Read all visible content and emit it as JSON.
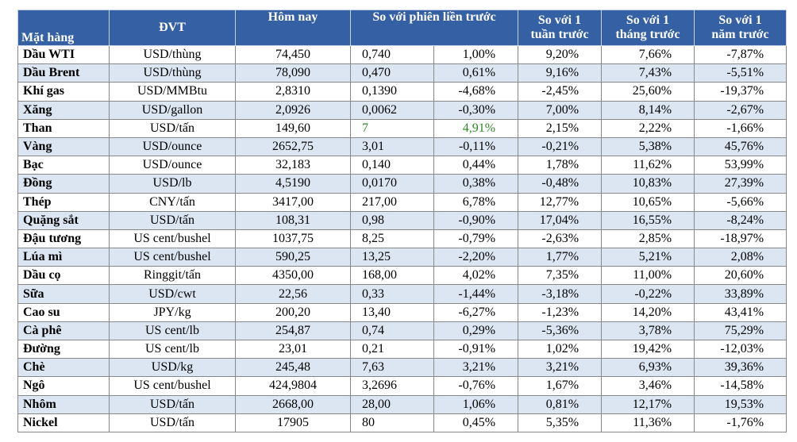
{
  "table": {
    "header": [
      "Mặt hàng",
      "ĐVT",
      "Hôm nay",
      "So với phiên liền trước",
      "So với 1 tuần trước",
      "So với 1 tháng trước",
      "So với 1 năm trước"
    ],
    "rows": [
      [
        "Dầu WTI",
        "USD/thùng",
        "74,450",
        "0,740",
        "1,00%",
        "9,20%",
        "7,66%",
        "-7,87%"
      ],
      [
        "Dầu Brent",
        "USD/thùng",
        "78,090",
        "0,470",
        "0,61%",
        "9,16%",
        "7,43%",
        "-5,51%"
      ],
      [
        "Khí gas",
        "USD/MMBtu",
        "2,8310",
        "0,1390",
        "-4,68%",
        "-2,45%",
        "25,60%",
        "-19,37%"
      ],
      [
        "Xăng",
        "USD/gallon",
        "2,0926",
        "0,0062",
        "-0,30%",
        "7,00%",
        "8,14%",
        "-2,67%"
      ],
      [
        "Than",
        "USD/tấn",
        "149,60",
        "7",
        "4,91%",
        "2,15%",
        "2,22%",
        "-1,66%"
      ],
      [
        "Vàng",
        "USD/ounce",
        "2652,75",
        "3,01",
        "-0,11%",
        "-0,21%",
        "5,38%",
        "45,76%"
      ],
      [
        "Bạc",
        "USD/ounce",
        "32,183",
        "0,140",
        "0,44%",
        "1,78%",
        "11,62%",
        "53,99%"
      ],
      [
        "Đồng",
        "USD/lb",
        "4,5190",
        "0,0170",
        "0,38%",
        "-0,48%",
        "10,83%",
        "27,39%"
      ],
      [
        "Thép",
        "CNY/tấn",
        "3417,00",
        "217,00",
        "6,78%",
        "12,77%",
        "10,65%",
        "-5,66%"
      ],
      [
        "Quặng sắt",
        "USD/tấn",
        "108,31",
        "0,98",
        "-0,90%",
        "17,04%",
        "16,55%",
        "-8,24%"
      ],
      [
        "Đậu tương",
        "US cent/bushel",
        "1037,75",
        "8,25",
        "-0,79%",
        "-2,63%",
        "2,85%",
        "-18,97%"
      ],
      [
        "Lúa mì",
        "US cent/bushel",
        "590,25",
        "13,25",
        "-2,20%",
        "1,77%",
        "5,21%",
        "2,08%"
      ],
      [
        "Dầu cọ",
        "Ringgit/tấn",
        "4350,00",
        "168,00",
        "4,02%",
        "7,35%",
        "11,00%",
        "20,60%"
      ],
      [
        "Sữa",
        "USD/cwt",
        "22,56",
        "0,33",
        "-1,44%",
        "-3,18%",
        "-0,22%",
        "33,89%"
      ],
      [
        "Cao su",
        "JPY/kg",
        "200,20",
        "13,40",
        "-6,27%",
        "-1,23%",
        "14,20%",
        "43,41%"
      ],
      [
        "Cà phê",
        "US cent/lb",
        "254,87",
        "0,74",
        "0,29%",
        "-5,36%",
        "3,78%",
        "75,29%"
      ],
      [
        "Đường",
        "US cent/lb",
        "23,01",
        "0,21",
        "-0,91%",
        "1,02%",
        "19,42%",
        "-12,03%"
      ],
      [
        "Chè",
        "USD/kg",
        "245,48",
        "7,63",
        "3,21%",
        "3,21%",
        "6,93%",
        "39,36%"
      ],
      [
        "Ngô",
        "US cent/bushel",
        "424,9804",
        "3,2696",
        "-0,76%",
        "1,67%",
        "3,46%",
        "-14,58%"
      ],
      [
        "Nhôm",
        "USD/tấn",
        "2668,00",
        "28,00",
        "1,06%",
        "0,81%",
        "12,17%",
        "19,53%"
      ],
      [
        "Nickel",
        "USD/tấn",
        "17905",
        "80",
        "0,45%",
        "5,35%",
        "11,36%",
        "-1,76%"
      ]
    ],
    "green_cells": [
      [
        4,
        3
      ],
      [
        4,
        4
      ]
    ],
    "green_color": "#2e8b22"
  }
}
